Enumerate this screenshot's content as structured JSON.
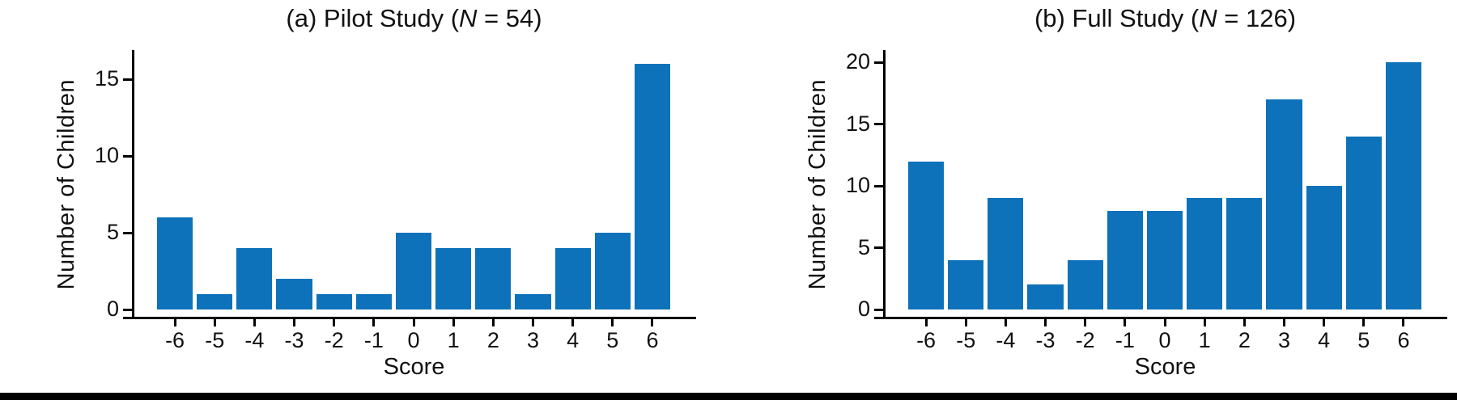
{
  "figure": {
    "background": "#ffffff",
    "axis_color": "#000000",
    "bar_color": "#0d72b9",
    "bottom_rule_color": "#000000"
  },
  "panels": [
    {
      "title_prefix": "(a) Pilot Study (",
      "title_italic": "N",
      "title_suffix": " = 54)",
      "ylabel": "Number of Children",
      "xlabel": "Score"
    },
    {
      "title_prefix": "(b) Full Study (",
      "title_italic": "N",
      "title_suffix": " = 126)",
      "ylabel": "Number of Children",
      "xlabel": "Score"
    }
  ],
  "chart_data": [
    {
      "type": "bar",
      "title": "(a) Pilot Study (N = 54)",
      "xlabel": "Score",
      "ylabel": "Number of Children",
      "categories": [
        "-6",
        "-5",
        "-4",
        "-3",
        "-2",
        "-1",
        "0",
        "1",
        "2",
        "3",
        "4",
        "5",
        "6"
      ],
      "values": [
        6,
        1,
        4,
        2,
        1,
        1,
        5,
        4,
        4,
        1,
        4,
        5,
        16
      ],
      "yticks": [
        0,
        5,
        10,
        15
      ],
      "ylim": [
        0,
        16.9
      ],
      "grid": false,
      "legend": false,
      "bar_color": "#0d72b9"
    },
    {
      "type": "bar",
      "title": "(b) Full Study (N = 126)",
      "xlabel": "Score",
      "ylabel": "Number of Children",
      "categories": [
        "-6",
        "-5",
        "-4",
        "-3",
        "-2",
        "-1",
        "0",
        "1",
        "2",
        "3",
        "4",
        "5",
        "6"
      ],
      "values": [
        12,
        4,
        9,
        2,
        4,
        8,
        8,
        9,
        9,
        17,
        10,
        14,
        20
      ],
      "yticks": [
        0,
        5,
        10,
        15,
        20
      ],
      "ylim": [
        0,
        21
      ],
      "grid": false,
      "legend": false,
      "bar_color": "#0d72b9"
    }
  ]
}
